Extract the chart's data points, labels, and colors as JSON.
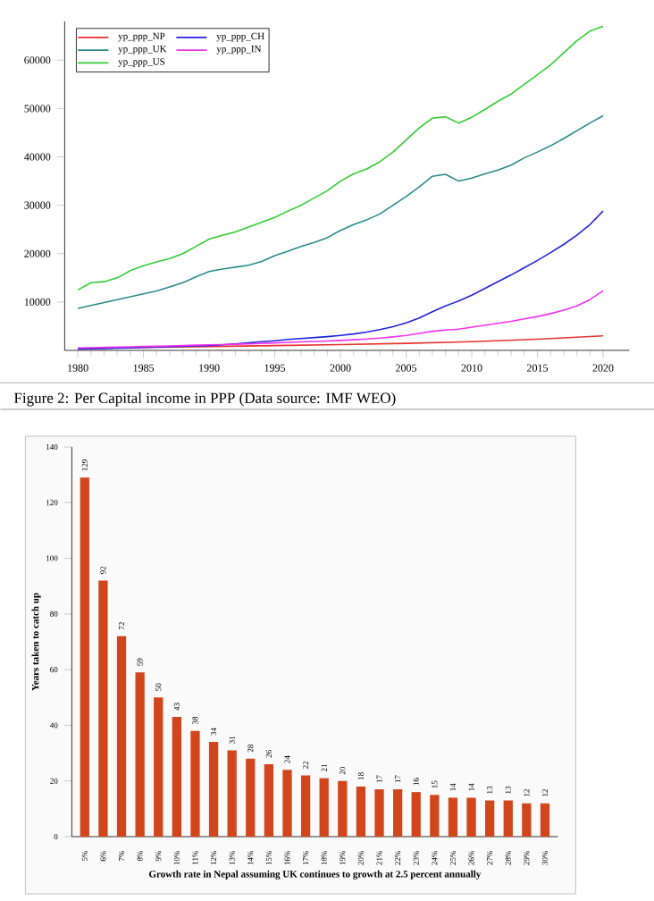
{
  "chart_data": [
    {
      "type": "line",
      "annotations": [
        "Figure 2: Per Capital income in PPP (Data source: IMF WEO)"
      ],
      "xlim": [
        1979,
        2022
      ],
      "ylim": [
        0,
        68000
      ],
      "xticks": [
        1980,
        1985,
        1990,
        1995,
        2000,
        2005,
        2010,
        2015,
        2020
      ],
      "yticks": [
        10000,
        20000,
        30000,
        40000,
        50000,
        60000
      ],
      "x": [
        1980,
        1981,
        1982,
        1983,
        1984,
        1985,
        1986,
        1987,
        1988,
        1989,
        1990,
        1991,
        1992,
        1993,
        1994,
        1995,
        1996,
        1997,
        1998,
        1999,
        2000,
        2001,
        2002,
        2003,
        2004,
        2005,
        2006,
        2007,
        2008,
        2009,
        2010,
        2011,
        2012,
        2013,
        2014,
        2015,
        2016,
        2017,
        2018,
        2019,
        2020
      ],
      "legend": "top left",
      "grid": false,
      "marker": "none",
      "line_style": "solid",
      "series": [
        {
          "name": "yp_ppp_NP",
          "color": "#e8312f",
          "x": [
            1980,
            1985,
            1990,
            1995,
            2000,
            2005,
            2010,
            2015,
            2020
          ],
          "values": [
            400,
            600,
            800,
            1000,
            1200,
            1450,
            1800,
            2300,
            3000
          ]
        },
        {
          "name": "yp_ppp_CH",
          "color": "#2222dd",
          "values": [
            300,
            350,
            400,
            450,
            520,
            600,
            680,
            770,
            860,
            930,
            1000,
            1150,
            1350,
            1550,
            1800,
            2000,
            2250,
            2450,
            2650,
            2850,
            3100,
            3400,
            3800,
            4300,
            4900,
            5700,
            6700,
            8000,
            9200,
            10200,
            11400,
            12800,
            14200,
            15600,
            17100,
            18600,
            20200,
            21900,
            23800,
            26000,
            28800
          ]
        },
        {
          "name": "yp_ppp_UK",
          "color": "#2a8a8a",
          "values": [
            8700,
            9300,
            9900,
            10500,
            11100,
            11700,
            12300,
            13100,
            14000,
            15200,
            16300,
            16800,
            17200,
            17600,
            18400,
            19600,
            20500,
            21500,
            22300,
            23300,
            24800,
            26000,
            27000,
            28200,
            30000,
            31800,
            33800,
            36000,
            36400,
            35000,
            35600,
            36500,
            37300,
            38300,
            39800,
            41000,
            42300,
            43800,
            45400,
            47000,
            48500
          ]
        },
        {
          "name": "yp_ppp_IN",
          "color": "#ee33ee",
          "values": [
            500,
            560,
            620,
            680,
            740,
            800,
            860,
            920,
            1000,
            1080,
            1150,
            1200,
            1270,
            1350,
            1450,
            1550,
            1650,
            1750,
            1850,
            1950,
            2050,
            2200,
            2350,
            2550,
            2800,
            3100,
            3500,
            3950,
            4200,
            4400,
            4800,
            5200,
            5600,
            6000,
            6500,
            7000,
            7600,
            8300,
            9200,
            10500,
            12300
          ]
        },
        {
          "name": "yp_ppp_US",
          "color": "#33cc33",
          "values": [
            12500,
            14000,
            14200,
            15000,
            16500,
            17500,
            18300,
            19000,
            20000,
            21500,
            23000,
            23800,
            24500,
            25500,
            26500,
            27500,
            28800,
            30000,
            31500,
            33000,
            35000,
            36500,
            37500,
            39000,
            41000,
            43500,
            46000,
            48000,
            48300,
            47000,
            48200,
            49800,
            51500,
            53000,
            55000,
            57000,
            59000,
            61500,
            64000,
            66000,
            67000
          ]
        }
      ]
    },
    {
      "type": "bar",
      "ylabel": "Years taken to catch up",
      "xlabel": "Growth rate in Nepal assuming UK continues to growth at 2.5 percent annually",
      "categories": [
        "5%",
        "6%",
        "7%",
        "8%",
        "9%",
        "10%",
        "11%",
        "12%",
        "13%",
        "14%",
        "15%",
        "16%",
        "17%",
        "18%",
        "19%",
        "20%",
        "21%",
        "22%",
        "23%",
        "24%",
        "25%",
        "26%",
        "27%",
        "28%",
        "29%",
        "30%"
      ],
      "values": [
        129,
        92,
        72,
        59,
        50,
        43,
        38,
        34,
        31,
        28,
        26,
        24,
        22,
        21,
        20,
        18,
        17,
        17,
        16,
        15,
        14,
        14,
        13,
        13,
        12,
        12
      ],
      "color": "#d2461e",
      "ylim": [
        0,
        140
      ],
      "yticks": [
        0,
        20,
        40,
        60,
        80,
        100,
        120,
        140
      ],
      "data_labels": true,
      "grid": false
    }
  ]
}
